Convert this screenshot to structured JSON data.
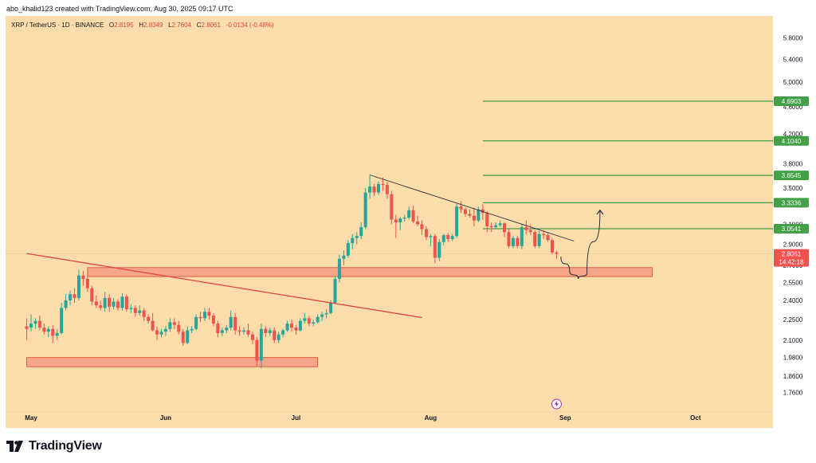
{
  "attribution": "abo_khalid123 created with TradingView.com, Aug 30, 2025 09:17 UTC",
  "legend": {
    "symbol": "XRP / TetherUS · 1D · BINANCE",
    "o_label": "O",
    "o_value": "2.8195",
    "h_label": "H",
    "h_value": "2.8349",
    "l_label": "L",
    "l_value": "2.7604",
    "c_label": "C",
    "c_value": "2.8061",
    "change": "-0.0134 (-0.48%)"
  },
  "footer": {
    "brand": "TradingView",
    "logo_icon": "tradingview-logo-icon"
  },
  "colors": {
    "background": "#fcdcaa",
    "up": "#26a69a",
    "down": "#ef5350",
    "level_line": "#43a047",
    "zone_fill": "#f4a58a",
    "zone_border": "#d9472b",
    "trend_red": "#e0463f",
    "trend_black": "#2a2e39",
    "price_tag": "#ef5350"
  },
  "chart_data": {
    "type": "candlestick",
    "title": "XRP / TetherUS · 1D · BINANCE",
    "y_scale": "log",
    "ylim": [
      1.68,
      6.05
    ],
    "grid": false,
    "y_ticks": [
      "5.8000",
      "5.4000",
      "5.0000",
      "4.6000",
      "4.2000",
      "3.8000",
      "3.5000",
      "3.1000",
      "2.9000",
      "2.7000",
      "2.5500",
      "2.4000",
      "2.2500",
      "2.1000",
      "1.9800",
      "1.8600",
      "1.7600"
    ],
    "x_labels": [
      {
        "label": "May",
        "date": "2025-05-01"
      },
      {
        "label": "Jun",
        "date": "2025-06-01"
      },
      {
        "label": "Jul",
        "date": "2025-07-01"
      },
      {
        "label": "Aug",
        "date": "2025-08-01"
      },
      {
        "label": "Sep",
        "date": "2025-09-01"
      },
      {
        "label": "Oct",
        "date": "2025-10-01"
      }
    ],
    "candles": [
      {
        "date": "2025-04-30",
        "o": 2.2,
        "h": 2.26,
        "l": 2.1,
        "c": 2.18
      },
      {
        "date": "2025-05-01",
        "o": 2.19,
        "h": 2.29,
        "l": 2.16,
        "c": 2.22
      },
      {
        "date": "2025-05-02",
        "o": 2.22,
        "h": 2.26,
        "l": 2.18,
        "c": 2.24
      },
      {
        "date": "2025-05-03",
        "o": 2.24,
        "h": 2.28,
        "l": 2.17,
        "c": 2.19
      },
      {
        "date": "2025-05-04",
        "o": 2.19,
        "h": 2.22,
        "l": 2.14,
        "c": 2.16
      },
      {
        "date": "2025-05-05",
        "o": 2.16,
        "h": 2.2,
        "l": 2.12,
        "c": 2.18
      },
      {
        "date": "2025-05-06",
        "o": 2.18,
        "h": 2.21,
        "l": 2.08,
        "c": 2.13
      },
      {
        "date": "2025-05-07",
        "o": 2.13,
        "h": 2.18,
        "l": 2.1,
        "c": 2.15
      },
      {
        "date": "2025-05-08",
        "o": 2.15,
        "h": 2.38,
        "l": 2.14,
        "c": 2.34
      },
      {
        "date": "2025-05-09",
        "o": 2.34,
        "h": 2.45,
        "l": 2.32,
        "c": 2.4
      },
      {
        "date": "2025-05-10",
        "o": 2.4,
        "h": 2.48,
        "l": 2.36,
        "c": 2.45
      },
      {
        "date": "2025-05-11",
        "o": 2.45,
        "h": 2.5,
        "l": 2.38,
        "c": 2.42
      },
      {
        "date": "2025-05-12",
        "o": 2.42,
        "h": 2.66,
        "l": 2.4,
        "c": 2.61
      },
      {
        "date": "2025-05-13",
        "o": 2.61,
        "h": 2.65,
        "l": 2.52,
        "c": 2.58
      },
      {
        "date": "2025-05-14",
        "o": 2.58,
        "h": 2.62,
        "l": 2.47,
        "c": 2.5
      },
      {
        "date": "2025-05-15",
        "o": 2.5,
        "h": 2.52,
        "l": 2.36,
        "c": 2.39
      },
      {
        "date": "2025-05-16",
        "o": 2.39,
        "h": 2.44,
        "l": 2.34,
        "c": 2.36
      },
      {
        "date": "2025-05-17",
        "o": 2.36,
        "h": 2.4,
        "l": 2.32,
        "c": 2.34
      },
      {
        "date": "2025-05-18",
        "o": 2.34,
        "h": 2.47,
        "l": 2.31,
        "c": 2.42
      },
      {
        "date": "2025-05-19",
        "o": 2.42,
        "h": 2.45,
        "l": 2.31,
        "c": 2.35
      },
      {
        "date": "2025-05-20",
        "o": 2.35,
        "h": 2.42,
        "l": 2.33,
        "c": 2.39
      },
      {
        "date": "2025-05-21",
        "o": 2.39,
        "h": 2.41,
        "l": 2.32,
        "c": 2.34
      },
      {
        "date": "2025-05-22",
        "o": 2.34,
        "h": 2.46,
        "l": 2.32,
        "c": 2.43
      },
      {
        "date": "2025-05-23",
        "o": 2.43,
        "h": 2.45,
        "l": 2.31,
        "c": 2.33
      },
      {
        "date": "2025-05-24",
        "o": 2.33,
        "h": 2.37,
        "l": 2.3,
        "c": 2.34
      },
      {
        "date": "2025-05-25",
        "o": 2.34,
        "h": 2.36,
        "l": 2.27,
        "c": 2.3
      },
      {
        "date": "2025-05-26",
        "o": 2.3,
        "h": 2.36,
        "l": 2.28,
        "c": 2.32
      },
      {
        "date": "2025-05-27",
        "o": 2.32,
        "h": 2.34,
        "l": 2.24,
        "c": 2.27
      },
      {
        "date": "2025-05-28",
        "o": 2.27,
        "h": 2.29,
        "l": 2.22,
        "c": 2.24
      },
      {
        "date": "2025-05-29",
        "o": 2.24,
        "h": 2.3,
        "l": 2.16,
        "c": 2.17
      },
      {
        "date": "2025-05-30",
        "o": 2.17,
        "h": 2.2,
        "l": 2.1,
        "c": 2.14
      },
      {
        "date": "2025-05-31",
        "o": 2.14,
        "h": 2.18,
        "l": 2.12,
        "c": 2.16
      },
      {
        "date": "2025-06-01",
        "o": 2.16,
        "h": 2.2,
        "l": 2.13,
        "c": 2.18
      },
      {
        "date": "2025-06-02",
        "o": 2.18,
        "h": 2.26,
        "l": 2.16,
        "c": 2.23
      },
      {
        "date": "2025-06-03",
        "o": 2.23,
        "h": 2.26,
        "l": 2.18,
        "c": 2.21
      },
      {
        "date": "2025-06-04",
        "o": 2.21,
        "h": 2.24,
        "l": 2.14,
        "c": 2.16
      },
      {
        "date": "2025-06-05",
        "o": 2.16,
        "h": 2.18,
        "l": 2.06,
        "c": 2.08
      },
      {
        "date": "2025-06-06",
        "o": 2.08,
        "h": 2.2,
        "l": 2.07,
        "c": 2.17
      },
      {
        "date": "2025-06-07",
        "o": 2.17,
        "h": 2.2,
        "l": 2.15,
        "c": 2.18
      },
      {
        "date": "2025-06-08",
        "o": 2.18,
        "h": 2.29,
        "l": 2.17,
        "c": 2.27
      },
      {
        "date": "2025-06-09",
        "o": 2.27,
        "h": 2.31,
        "l": 2.23,
        "c": 2.26
      },
      {
        "date": "2025-06-10",
        "o": 2.26,
        "h": 2.34,
        "l": 2.24,
        "c": 2.31
      },
      {
        "date": "2025-06-11",
        "o": 2.31,
        "h": 2.34,
        "l": 2.25,
        "c": 2.28
      },
      {
        "date": "2025-06-12",
        "o": 2.28,
        "h": 2.3,
        "l": 2.2,
        "c": 2.22
      },
      {
        "date": "2025-06-13",
        "o": 2.22,
        "h": 2.24,
        "l": 2.12,
        "c": 2.15
      },
      {
        "date": "2025-06-14",
        "o": 2.15,
        "h": 2.19,
        "l": 2.13,
        "c": 2.17
      },
      {
        "date": "2025-06-15",
        "o": 2.17,
        "h": 2.21,
        "l": 2.15,
        "c": 2.19
      },
      {
        "date": "2025-06-16",
        "o": 2.19,
        "h": 2.32,
        "l": 2.17,
        "c": 2.27
      },
      {
        "date": "2025-06-17",
        "o": 2.27,
        "h": 2.3,
        "l": 2.14,
        "c": 2.17
      },
      {
        "date": "2025-06-18",
        "o": 2.17,
        "h": 2.2,
        "l": 2.13,
        "c": 2.16
      },
      {
        "date": "2025-06-19",
        "o": 2.16,
        "h": 2.19,
        "l": 2.14,
        "c": 2.17
      },
      {
        "date": "2025-06-20",
        "o": 2.17,
        "h": 2.22,
        "l": 2.12,
        "c": 2.14
      },
      {
        "date": "2025-06-21",
        "o": 2.14,
        "h": 2.16,
        "l": 2.07,
        "c": 2.1
      },
      {
        "date": "2025-06-22",
        "o": 2.1,
        "h": 2.12,
        "l": 1.92,
        "c": 1.96
      },
      {
        "date": "2025-06-23",
        "o": 1.96,
        "h": 2.22,
        "l": 1.91,
        "c": 2.18
      },
      {
        "date": "2025-06-24",
        "o": 2.18,
        "h": 2.2,
        "l": 2.12,
        "c": 2.15
      },
      {
        "date": "2025-06-25",
        "o": 2.15,
        "h": 2.19,
        "l": 2.13,
        "c": 2.17
      },
      {
        "date": "2025-06-26",
        "o": 2.17,
        "h": 2.19,
        "l": 2.08,
        "c": 2.1
      },
      {
        "date": "2025-06-27",
        "o": 2.1,
        "h": 2.16,
        "l": 2.08,
        "c": 2.14
      },
      {
        "date": "2025-06-28",
        "o": 2.14,
        "h": 2.18,
        "l": 2.12,
        "c": 2.17
      },
      {
        "date": "2025-06-29",
        "o": 2.17,
        "h": 2.24,
        "l": 2.16,
        "c": 2.22
      },
      {
        "date": "2025-06-30",
        "o": 2.22,
        "h": 2.25,
        "l": 2.16,
        "c": 2.19
      },
      {
        "date": "2025-07-01",
        "o": 2.19,
        "h": 2.21,
        "l": 2.14,
        "c": 2.17
      },
      {
        "date": "2025-07-02",
        "o": 2.17,
        "h": 2.26,
        "l": 2.16,
        "c": 2.24
      },
      {
        "date": "2025-07-03",
        "o": 2.24,
        "h": 2.3,
        "l": 2.22,
        "c": 2.26
      },
      {
        "date": "2025-07-04",
        "o": 2.26,
        "h": 2.28,
        "l": 2.2,
        "c": 2.22
      },
      {
        "date": "2025-07-05",
        "o": 2.22,
        "h": 2.25,
        "l": 2.2,
        "c": 2.23
      },
      {
        "date": "2025-07-06",
        "o": 2.23,
        "h": 2.29,
        "l": 2.22,
        "c": 2.27
      },
      {
        "date": "2025-07-07",
        "o": 2.27,
        "h": 2.31,
        "l": 2.24,
        "c": 2.29
      },
      {
        "date": "2025-07-08",
        "o": 2.29,
        "h": 2.33,
        "l": 2.26,
        "c": 2.3
      },
      {
        "date": "2025-07-09",
        "o": 2.3,
        "h": 2.4,
        "l": 2.29,
        "c": 2.38
      },
      {
        "date": "2025-07-10",
        "o": 2.38,
        "h": 2.6,
        "l": 2.37,
        "c": 2.58
      },
      {
        "date": "2025-07-11",
        "o": 2.58,
        "h": 2.8,
        "l": 2.55,
        "c": 2.76
      },
      {
        "date": "2025-07-12",
        "o": 2.76,
        "h": 2.84,
        "l": 2.7,
        "c": 2.79
      },
      {
        "date": "2025-07-13",
        "o": 2.79,
        "h": 2.94,
        "l": 2.77,
        "c": 2.91
      },
      {
        "date": "2025-07-14",
        "o": 2.91,
        "h": 3.0,
        "l": 2.85,
        "c": 2.96
      },
      {
        "date": "2025-07-15",
        "o": 2.96,
        "h": 3.02,
        "l": 2.9,
        "c": 2.98
      },
      {
        "date": "2025-07-16",
        "o": 2.98,
        "h": 3.12,
        "l": 2.95,
        "c": 3.07
      },
      {
        "date": "2025-07-17",
        "o": 3.07,
        "h": 3.5,
        "l": 3.05,
        "c": 3.45
      },
      {
        "date": "2025-07-18",
        "o": 3.45,
        "h": 3.66,
        "l": 3.38,
        "c": 3.52
      },
      {
        "date": "2025-07-19",
        "o": 3.52,
        "h": 3.55,
        "l": 3.41,
        "c": 3.45
      },
      {
        "date": "2025-07-20",
        "o": 3.45,
        "h": 3.58,
        "l": 3.42,
        "c": 3.55
      },
      {
        "date": "2025-07-21",
        "o": 3.55,
        "h": 3.63,
        "l": 3.47,
        "c": 3.54
      },
      {
        "date": "2025-07-22",
        "o": 3.54,
        "h": 3.58,
        "l": 3.38,
        "c": 3.43
      },
      {
        "date": "2025-07-23",
        "o": 3.43,
        "h": 3.47,
        "l": 3.1,
        "c": 3.15
      },
      {
        "date": "2025-07-24",
        "o": 3.15,
        "h": 3.2,
        "l": 2.96,
        "c": 3.12
      },
      {
        "date": "2025-07-25",
        "o": 3.12,
        "h": 3.18,
        "l": 3.04,
        "c": 3.16
      },
      {
        "date": "2025-07-26",
        "o": 3.16,
        "h": 3.2,
        "l": 3.13,
        "c": 3.17
      },
      {
        "date": "2025-07-27",
        "o": 3.17,
        "h": 3.29,
        "l": 3.15,
        "c": 3.25
      },
      {
        "date": "2025-07-28",
        "o": 3.25,
        "h": 3.3,
        "l": 3.11,
        "c": 3.13
      },
      {
        "date": "2025-07-29",
        "o": 3.13,
        "h": 3.19,
        "l": 3.08,
        "c": 3.1
      },
      {
        "date": "2025-07-30",
        "o": 3.1,
        "h": 3.14,
        "l": 2.99,
        "c": 3.05
      },
      {
        "date": "2025-07-31",
        "o": 3.05,
        "h": 3.08,
        "l": 2.94,
        "c": 2.97
      },
      {
        "date": "2025-08-01",
        "o": 2.97,
        "h": 3.0,
        "l": 2.88,
        "c": 2.98
      },
      {
        "date": "2025-08-02",
        "o": 2.98,
        "h": 3.0,
        "l": 2.72,
        "c": 2.77
      },
      {
        "date": "2025-08-03",
        "o": 2.77,
        "h": 2.95,
        "l": 2.74,
        "c": 2.92
      },
      {
        "date": "2025-08-04",
        "o": 2.92,
        "h": 3.0,
        "l": 2.89,
        "c": 2.99
      },
      {
        "date": "2025-08-05",
        "o": 2.99,
        "h": 3.01,
        "l": 2.92,
        "c": 2.95
      },
      {
        "date": "2025-08-06",
        "o": 2.95,
        "h": 3.0,
        "l": 2.93,
        "c": 2.98
      },
      {
        "date": "2025-08-07",
        "o": 2.98,
        "h": 3.32,
        "l": 2.96,
        "c": 3.29
      },
      {
        "date": "2025-08-08",
        "o": 3.29,
        "h": 3.35,
        "l": 3.22,
        "c": 3.26
      },
      {
        "date": "2025-08-09",
        "o": 3.26,
        "h": 3.28,
        "l": 3.18,
        "c": 3.21
      },
      {
        "date": "2025-08-10",
        "o": 3.21,
        "h": 3.26,
        "l": 3.17,
        "c": 3.19
      },
      {
        "date": "2025-08-11",
        "o": 3.19,
        "h": 3.28,
        "l": 3.08,
        "c": 3.14
      },
      {
        "date": "2025-08-12",
        "o": 3.14,
        "h": 3.29,
        "l": 3.12,
        "c": 3.26
      },
      {
        "date": "2025-08-13",
        "o": 3.26,
        "h": 3.32,
        "l": 3.15,
        "c": 3.22
      },
      {
        "date": "2025-08-14",
        "o": 3.22,
        "h": 3.24,
        "l": 3.02,
        "c": 3.08
      },
      {
        "date": "2025-08-15",
        "o": 3.08,
        "h": 3.12,
        "l": 3.02,
        "c": 3.07
      },
      {
        "date": "2025-08-16",
        "o": 3.07,
        "h": 3.12,
        "l": 3.06,
        "c": 3.09
      },
      {
        "date": "2025-08-17",
        "o": 3.09,
        "h": 3.14,
        "l": 3.07,
        "c": 3.11
      },
      {
        "date": "2025-08-18",
        "o": 3.11,
        "h": 3.12,
        "l": 2.97,
        "c": 3.02
      },
      {
        "date": "2025-08-19",
        "o": 3.02,
        "h": 3.05,
        "l": 2.86,
        "c": 2.88
      },
      {
        "date": "2025-08-20",
        "o": 2.88,
        "h": 2.98,
        "l": 2.86,
        "c": 2.96
      },
      {
        "date": "2025-08-21",
        "o": 2.96,
        "h": 2.98,
        "l": 2.86,
        "c": 2.88
      },
      {
        "date": "2025-08-22",
        "o": 2.88,
        "h": 3.1,
        "l": 2.85,
        "c": 3.07
      },
      {
        "date": "2025-08-23",
        "o": 3.07,
        "h": 3.14,
        "l": 3.0,
        "c": 3.04
      },
      {
        "date": "2025-08-24",
        "o": 3.04,
        "h": 3.1,
        "l": 2.99,
        "c": 3.02
      },
      {
        "date": "2025-08-25",
        "o": 3.02,
        "h": 3.04,
        "l": 2.86,
        "c": 2.88
      },
      {
        "date": "2025-08-26",
        "o": 2.88,
        "h": 3.03,
        "l": 2.86,
        "c": 3.0
      },
      {
        "date": "2025-08-27",
        "o": 3.0,
        "h": 3.04,
        "l": 2.95,
        "c": 2.99
      },
      {
        "date": "2025-08-28",
        "o": 2.99,
        "h": 3.02,
        "l": 2.92,
        "c": 2.94
      },
      {
        "date": "2025-08-29",
        "o": 2.94,
        "h": 2.96,
        "l": 2.8,
        "c": 2.82
      },
      {
        "date": "2025-08-30",
        "o": 2.8195,
        "h": 2.8349,
        "l": 2.7604,
        "c": 2.8061
      }
    ],
    "levels": [
      {
        "value": 4.6903,
        "label": "4.6903",
        "from": "2025-08-13"
      },
      {
        "value": 4.104,
        "label": "4.1040",
        "from": "2025-08-13"
      },
      {
        "value": 3.6545,
        "label": "3.6545",
        "from": "2025-08-13"
      },
      {
        "value": 3.3336,
        "label": "3.3336",
        "from": "2025-08-13"
      },
      {
        "value": 3.0541,
        "label": "3.0541",
        "from": "2025-08-13"
      }
    ],
    "zones": [
      {
        "from": "2025-05-14",
        "to": "2025-09-21",
        "low": 2.6,
        "high": 2.68
      },
      {
        "from": "2025-04-30",
        "to": "2025-07-06",
        "low": 1.92,
        "high": 1.98
      }
    ],
    "trendlines": [
      {
        "color": "trend_red",
        "from": {
          "date": "2025-04-30",
          "price": 2.81
        },
        "to": {
          "date": "2025-07-30",
          "price": 2.265
        }
      },
      {
        "color": "trend_black",
        "from": {
          "date": "2025-07-18",
          "price": 3.66
        },
        "to": {
          "date": "2025-09-03",
          "price": 2.93
        }
      }
    ],
    "projection": {
      "color": "trend_black",
      "points": [
        {
          "date": "2025-08-31",
          "price": 2.78
        },
        {
          "date": "2025-09-02",
          "price": 2.65
        },
        {
          "date": "2025-09-04",
          "price": 2.58
        },
        {
          "date": "2025-09-06",
          "price": 2.63
        },
        {
          "date": "2025-09-09",
          "price": 3.25
        }
      ]
    },
    "last_price": {
      "value": 2.8061,
      "label": "2.8061",
      "countdown": "14:42:18"
    },
    "event_marker": {
      "date": "2025-08-30",
      "icon": "lightning-icon"
    }
  }
}
